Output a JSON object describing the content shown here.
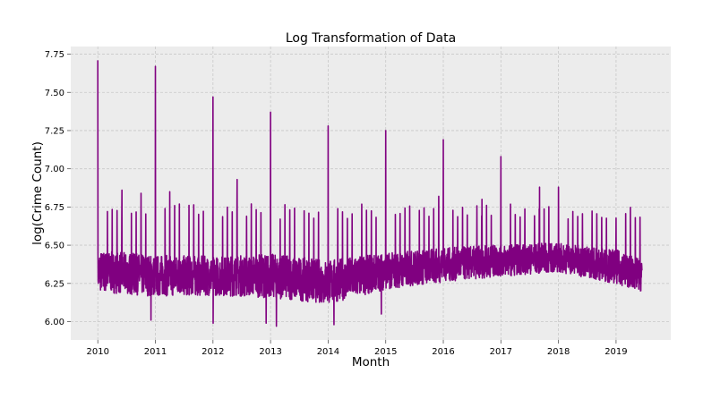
{
  "chart_data": {
    "type": "line",
    "title": "Log Transformation of Data",
    "xlabel": "Month",
    "ylabel": "log(Crime Count)",
    "xlim": [
      2009.53,
      2019.95
    ],
    "ylim": [
      5.88,
      7.8
    ],
    "x_ticks": [
      2010,
      2011,
      2012,
      2013,
      2014,
      2015,
      2016,
      2017,
      2018,
      2019
    ],
    "x_tick_labels": [
      "2010",
      "2011",
      "2012",
      "2013",
      "2014",
      "2015",
      "2016",
      "2017",
      "2018",
      "2019"
    ],
    "y_ticks": [
      6.0,
      6.25,
      6.5,
      6.75,
      7.0,
      7.25,
      7.5,
      7.75
    ],
    "y_tick_labels": [
      "6.00",
      "6.25",
      "6.50",
      "6.75",
      "7.00",
      "7.25",
      "7.50",
      "7.75"
    ],
    "grid": true,
    "colors": {
      "line": "#800080",
      "plot_bg": "#ececec",
      "grid": "#c8c8c8"
    },
    "series": [
      {
        "x_start": 2010.0,
        "x_end": 2019.45,
        "frequency": "daily",
        "band_baseline": [
          [
            2010.0,
            6.33
          ],
          [
            2011.0,
            6.3
          ],
          [
            2012.0,
            6.3
          ],
          [
            2013.0,
            6.3
          ],
          [
            2014.0,
            6.26
          ],
          [
            2015.0,
            6.33
          ],
          [
            2016.0,
            6.37
          ],
          [
            2017.0,
            6.4
          ],
          [
            2018.0,
            6.42
          ],
          [
            2019.0,
            6.36
          ],
          [
            2019.45,
            6.3
          ]
        ],
        "band_range": [
          [
            2010.0,
            0.17
          ],
          [
            2011.0,
            0.17
          ],
          [
            2012.0,
            0.16
          ],
          [
            2013.0,
            0.18
          ],
          [
            2014.0,
            0.18
          ],
          [
            2015.0,
            0.15
          ],
          [
            2016.0,
            0.14
          ],
          [
            2017.0,
            0.13
          ],
          [
            2018.0,
            0.12
          ],
          [
            2019.0,
            0.14
          ],
          [
            2019.45,
            0.13
          ]
        ],
        "peaks": [
          {
            "x": 2010.0,
            "y": 7.71
          },
          {
            "x": 2011.0,
            "y": 7.67
          },
          {
            "x": 2012.0,
            "y": 7.47
          },
          {
            "x": 2013.0,
            "y": 7.37
          },
          {
            "x": 2014.0,
            "y": 7.28
          },
          {
            "x": 2015.0,
            "y": 7.25
          },
          {
            "x": 2016.0,
            "y": 7.19
          },
          {
            "x": 2017.0,
            "y": 7.08
          },
          {
            "x": 2017.67,
            "y": 6.88
          },
          {
            "x": 2018.0,
            "y": 6.88
          },
          {
            "x": 2010.42,
            "y": 6.86
          },
          {
            "x": 2010.75,
            "y": 6.84
          },
          {
            "x": 2011.25,
            "y": 6.85
          },
          {
            "x": 2012.42,
            "y": 6.93
          },
          {
            "x": 2015.92,
            "y": 6.82
          },
          {
            "x": 2016.67,
            "y": 6.8
          }
        ],
        "monthly_first_day_level": 6.72,
        "troughs": [
          {
            "x": 2012.0,
            "y": 5.99
          },
          {
            "x": 2012.92,
            "y": 5.99
          },
          {
            "x": 2013.1,
            "y": 5.97
          },
          {
            "x": 2014.1,
            "y": 5.98
          },
          {
            "x": 2014.92,
            "y": 6.05
          },
          {
            "x": 2010.92,
            "y": 6.01
          }
        ]
      }
    ]
  }
}
